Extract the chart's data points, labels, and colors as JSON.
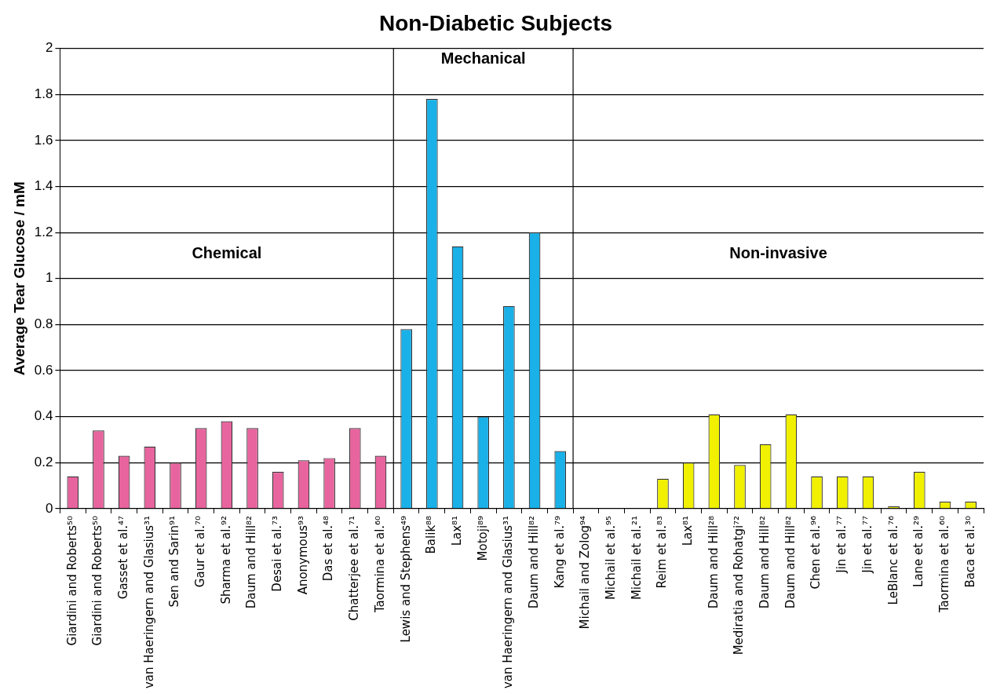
{
  "chart_data": {
    "type": "bar",
    "title": "Non-Diabetic Subjects",
    "ylabel": "Average Tear Glucose / mM",
    "categories": [
      "Giardini and Roberts⁵⁰",
      "Giardini and Roberts⁵⁰",
      "Gasset et al.⁴⁷",
      "van Haeringern and Glasius³¹",
      "Sen and Sarin⁹¹",
      "Gaur et al.⁷⁰",
      "Sharma et al.⁹²",
      "Daum and Hill⁸²",
      "Desai et al.⁷³",
      "Anonymous⁹³",
      "Das et al.⁴⁸",
      "Chatterjee et al.⁷¹",
      "Taormina et al.⁶⁰",
      "Lewis and Stephens⁴⁹",
      "Balik⁸⁸",
      "Lax⁸¹",
      "Motoji⁸⁹",
      "van Haeringern and Glasius³¹",
      "Daum and Hill⁸²",
      "Kang et al.⁷⁹",
      "Michail and Zolog⁹⁴",
      "Michail et al.⁹⁵",
      "Michail et al.²¹",
      "Reim et al.⁸³",
      "Lax⁸¹",
      "Daum and Hill²⁸",
      "Mediratia and Rohatgi⁷²",
      "Daum and Hill⁸²",
      "Daum and Hill⁸²",
      "Chen et al.⁹⁶",
      "Jin et al.⁷⁷",
      "Jin et al.⁷⁷",
      "LeBlanc et al.⁷⁶",
      "Lane et al.²⁹",
      "Taormina et al.⁶⁰",
      "Baca et al.³⁰"
    ],
    "series": [
      {
        "color": "#e8649e",
        "values": [
          0.14,
          0.34,
          0.23,
          0.27,
          0.2,
          0.35,
          0.38,
          0.35,
          0.16,
          0.21,
          0.22,
          0.35,
          0.23,
          null,
          null,
          null,
          null,
          null,
          null,
          null,
          null,
          null,
          null,
          null,
          null,
          null,
          null,
          null,
          null,
          null,
          null,
          null,
          null,
          null,
          null,
          null
        ]
      },
      {
        "color": "#1ab0e8",
        "values": [
          null,
          null,
          null,
          null,
          null,
          null,
          null,
          null,
          null,
          null,
          null,
          null,
          null,
          0.78,
          1.78,
          1.14,
          0.4,
          0.88,
          1.2,
          0.25,
          null,
          null,
          null,
          null,
          null,
          null,
          null,
          null,
          null,
          null,
          null,
          null,
          null,
          null,
          null,
          null
        ]
      },
      {
        "color": "#f0f000",
        "values": [
          null,
          null,
          null,
          null,
          null,
          null,
          null,
          null,
          null,
          null,
          null,
          null,
          null,
          null,
          null,
          null,
          null,
          null,
          null,
          null,
          0,
          0,
          0,
          0.13,
          0.2,
          0.41,
          0.19,
          0.28,
          0.41,
          0.14,
          0.14,
          0.14,
          0.01,
          0.16,
          0.03,
          0.03
        ]
      }
    ],
    "ylim": [
      0,
      2
    ],
    "yticks": [
      0,
      0.2,
      0.4,
      0.6,
      0.8,
      1,
      1.2,
      1.4,
      1.6,
      1.8,
      2
    ],
    "grid": "y",
    "legend": false,
    "annotations": [
      "Chemical",
      "Mechanical",
      "Non-invasive"
    ]
  }
}
